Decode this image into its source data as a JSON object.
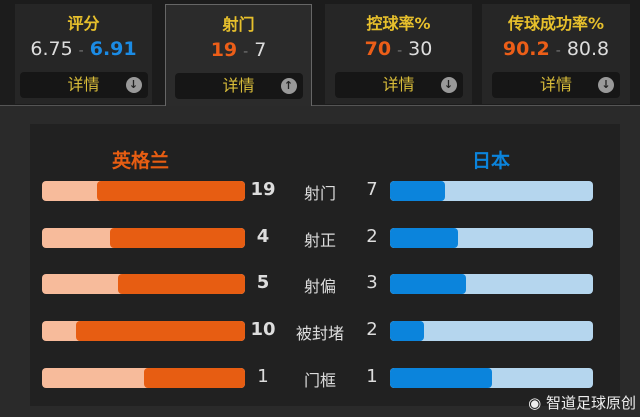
{
  "tabs": [
    {
      "title": "评分",
      "home": "6.75",
      "away": "6.91",
      "highlight": "away",
      "details": "详情",
      "arrow": "down"
    },
    {
      "title": "射门",
      "home": "19",
      "away": "7",
      "highlight": "home",
      "details": "详情",
      "arrow": "up",
      "active": true
    },
    {
      "title": "控球率%",
      "home": "70",
      "away": "30",
      "highlight": "home",
      "details": "详情",
      "arrow": "down"
    },
    {
      "title": "传球成功率%",
      "home": "90.2",
      "away": "80.8",
      "highlight": "home",
      "details": "详情",
      "arrow": "down"
    }
  ],
  "separator": "-",
  "teams": {
    "home": "英格兰",
    "away": "日本",
    "home_color": "#e75d12",
    "away_color": "#0b84dc"
  },
  "stats": [
    {
      "label": "射门",
      "home": 19,
      "away": 7,
      "home_bold": true
    },
    {
      "label": "射正",
      "home": 4,
      "away": 2,
      "home_bold": true
    },
    {
      "label": "射偏",
      "home": 5,
      "away": 3,
      "home_bold": true
    },
    {
      "label": "被封堵",
      "home": 10,
      "away": 2,
      "home_bold": true
    },
    {
      "label": "门框",
      "home": 1,
      "away": 1,
      "home_bold": false
    }
  ],
  "watermark": "智道足球原创"
}
